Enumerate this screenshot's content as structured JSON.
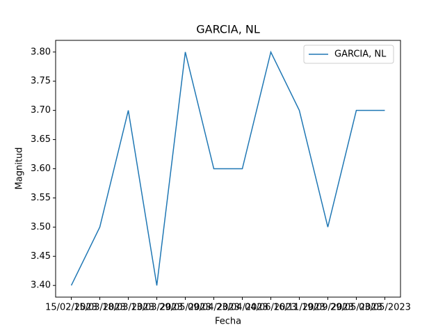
{
  "chart_data": {
    "type": "line",
    "title": "GARCIA, NL",
    "xlabel": "Fecha",
    "ylabel": "Magnitud",
    "categories": [
      "15/02/2023",
      "15/03/2023",
      "18/03/2023",
      "13/03/2023",
      "29/05/2023",
      "09/04/2023",
      "23/04/2023",
      "04/06/2023",
      "16/11/2023",
      "19/09/2023",
      "29/05/2023",
      "03/05/2023"
    ],
    "series": [
      {
        "name": "GARCIA, NL",
        "color": "#1f77b4",
        "values": [
          3.4,
          3.5,
          3.7,
          3.4,
          3.8,
          3.6,
          3.6,
          3.8,
          3.7,
          3.5,
          3.7,
          3.7
        ]
      }
    ],
    "ylim": [
      3.38,
      3.82
    ],
    "yticks": [
      {
        "value": 3.4,
        "label": "3.40"
      },
      {
        "value": 3.45,
        "label": "3.45"
      },
      {
        "value": 3.5,
        "label": "3.50"
      },
      {
        "value": 3.55,
        "label": "3.55"
      },
      {
        "value": 3.6,
        "label": "3.60"
      },
      {
        "value": 3.65,
        "label": "3.65"
      },
      {
        "value": 3.7,
        "label": "3.70"
      },
      {
        "value": 3.75,
        "label": "3.75"
      },
      {
        "value": 3.8,
        "label": "3.80"
      }
    ],
    "grid": false,
    "legend": "upper right"
  }
}
